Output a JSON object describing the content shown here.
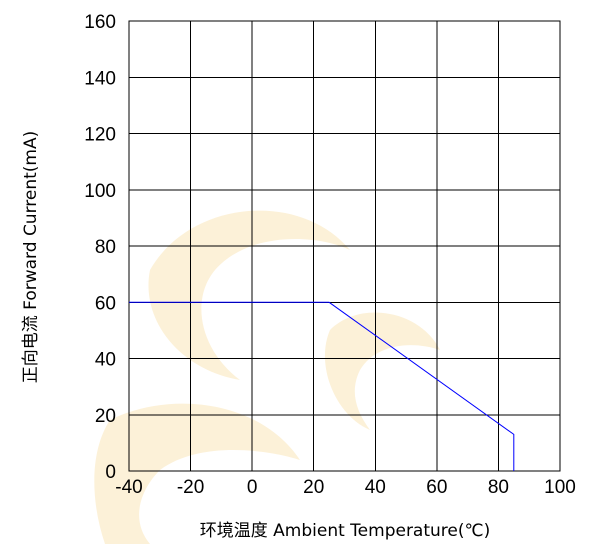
{
  "chart_data": {
    "type": "line",
    "title": "",
    "xlabel": "环境温度  Ambient Temperature(℃)",
    "ylabel": "正向电流 Forward Current(mA)",
    "xlim": [
      -40,
      100
    ],
    "ylim": [
      0,
      160
    ],
    "x_ticks": [
      -40,
      -20,
      0,
      20,
      40,
      60,
      80,
      100
    ],
    "y_ticks": [
      0,
      20,
      40,
      60,
      80,
      100,
      120,
      140,
      160
    ],
    "x_tick_labels": [
      "-40",
      "-20",
      "0",
      "20",
      "40",
      "60",
      "80",
      "100"
    ],
    "y_tick_labels": [
      "0",
      "20",
      "40",
      "60",
      "80",
      "100",
      "120",
      "140",
      "160"
    ],
    "grid": true,
    "series": [
      {
        "color": "#0000ff",
        "points": [
          {
            "x": -40,
            "y": 60
          },
          {
            "x": 25,
            "y": 60
          },
          {
            "x": 85,
            "y": 13
          },
          {
            "x": 85,
            "y": 0
          }
        ]
      }
    ]
  },
  "colors": {
    "line": "#0000ff",
    "grid": "#000000",
    "text": "#000000",
    "watermark": "#f2c14e"
  }
}
